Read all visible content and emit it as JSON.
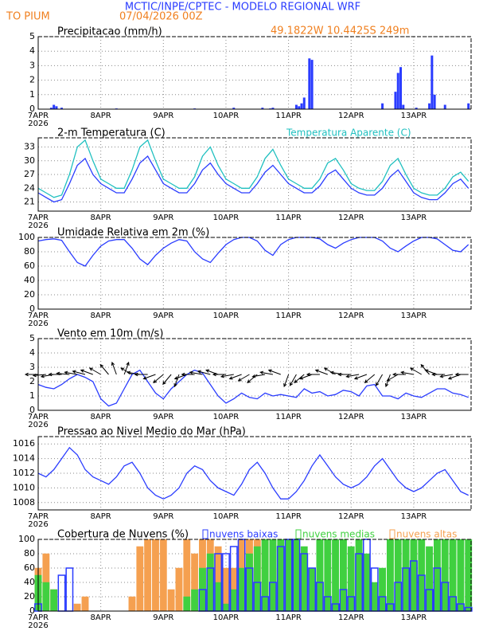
{
  "header": {
    "title": "MCTIC/INPE/CPTEC - MODELO REGIONAL WRF",
    "location": "TO PIUM",
    "date": "07/04/2026 00Z",
    "coords": "49.1822W 10.4425S 249m"
  },
  "chart_data": [
    {
      "type": "bar",
      "title": "Precipitacao (mm/h)",
      "color": "#2a3cff",
      "x": [
        5,
        6,
        7,
        9,
        30,
        60,
        75,
        86,
        89,
        90,
        99,
        100,
        101,
        102,
        104,
        105,
        132,
        137,
        138,
        139,
        140,
        145,
        150,
        151,
        152,
        156,
        165
      ],
      "values": [
        0.1,
        0.3,
        0.2,
        0.1,
        0.05,
        0.05,
        0.1,
        0.1,
        0.05,
        0.1,
        0.3,
        0.2,
        0.4,
        0.8,
        3.5,
        3.4,
        0.4,
        1.2,
        2.5,
        2.9,
        0.3,
        0.1,
        0.4,
        3.7,
        1.0,
        0.3,
        0.4
      ],
      "xlim": [
        0,
        166
      ],
      "xticks": [
        {
          "value": 0,
          "label": "7APR"
        },
        {
          "value": 24,
          "label": "8APR"
        },
        {
          "value": 48,
          "label": "9APR"
        },
        {
          "value": 72,
          "label": "10APR"
        },
        {
          "value": 96,
          "label": "11APR"
        },
        {
          "value": 120,
          "label": "12APR"
        },
        {
          "value": 144,
          "label": "13APR"
        }
      ],
      "x_year": "2026",
      "ylim": [
        0,
        5
      ],
      "yticks": [
        0,
        1,
        2,
        3,
        4,
        5
      ]
    },
    {
      "type": "line",
      "title": "2-m Temperatura (C)",
      "x": [
        0,
        3,
        6,
        9,
        12,
        15,
        18,
        21,
        24,
        27,
        30,
        33,
        36,
        39,
        42,
        45,
        48,
        51,
        54,
        57,
        60,
        63,
        66,
        69,
        72,
        75,
        78,
        81,
        84,
        87,
        90,
        93,
        96,
        99,
        102,
        105,
        108,
        111,
        114,
        117,
        120,
        123,
        126,
        129,
        132,
        135,
        138,
        141,
        144,
        147,
        150,
        153,
        156,
        159,
        162,
        165
      ],
      "series": [
        {
          "color": "#2a3cff",
          "values": [
            23,
            22,
            21,
            21.5,
            25,
            29,
            30.5,
            27,
            25,
            24,
            23,
            23,
            26,
            29.5,
            31,
            28,
            25,
            24,
            23,
            23,
            25,
            28,
            29.5,
            27,
            25,
            24,
            23,
            23,
            25,
            27.5,
            29,
            27,
            25,
            24,
            23,
            23,
            24.5,
            27,
            28,
            26,
            24,
            23,
            22.5,
            22.5,
            24,
            26.5,
            28,
            25.5,
            23,
            22,
            21.5,
            21.5,
            23,
            25,
            26,
            24
          ]
        },
        {
          "name": "Temperatura Aparente (C)",
          "color": "#20c0c0",
          "values": [
            24,
            23,
            22,
            22.5,
            27,
            33,
            34.5,
            30,
            26,
            25,
            24,
            24,
            28,
            33,
            34.5,
            30,
            26,
            25,
            24,
            24,
            26.5,
            31,
            33,
            29,
            26,
            25,
            24,
            24,
            26.5,
            30.5,
            32.5,
            29,
            26,
            25,
            24,
            24,
            26,
            29.5,
            30.5,
            28,
            25,
            24,
            23.5,
            23.5,
            25.5,
            29,
            30.5,
            27,
            24,
            23,
            22.5,
            22.5,
            24,
            26.5,
            27.5,
            25.5
          ]
        }
      ],
      "xlim": [
        0,
        166
      ],
      "xticks": [
        {
          "value": 0,
          "label": "7APR"
        },
        {
          "value": 24,
          "label": "8APR"
        },
        {
          "value": 48,
          "label": "9APR"
        },
        {
          "value": 72,
          "label": "10APR"
        },
        {
          "value": 96,
          "label": "11APR"
        },
        {
          "value": 120,
          "label": "12APR"
        },
        {
          "value": 144,
          "label": "13APR"
        }
      ],
      "x_year": "2026",
      "ylim": [
        19,
        35
      ],
      "yticks": [
        21,
        24,
        27,
        30,
        33
      ]
    },
    {
      "type": "line",
      "title": "Umidade Relativa em 2m (%)",
      "x": [
        0,
        3,
        6,
        9,
        12,
        15,
        18,
        21,
        24,
        27,
        30,
        33,
        36,
        39,
        42,
        45,
        48,
        51,
        54,
        57,
        60,
        63,
        66,
        69,
        72,
        75,
        78,
        81,
        84,
        87,
        90,
        93,
        96,
        99,
        102,
        105,
        108,
        111,
        114,
        117,
        120,
        123,
        126,
        129,
        132,
        135,
        138,
        141,
        144,
        147,
        150,
        153,
        156,
        159,
        162,
        165
      ],
      "series": [
        {
          "color": "#2a3cff",
          "values": [
            95,
            97,
            98,
            96,
            80,
            65,
            60,
            75,
            88,
            95,
            97,
            97,
            85,
            70,
            62,
            75,
            85,
            92,
            97,
            95,
            80,
            70,
            65,
            78,
            90,
            97,
            100,
            100,
            95,
            82,
            75,
            90,
            97,
            100,
            100,
            100,
            98,
            90,
            85,
            92,
            97,
            100,
            100,
            100,
            95,
            85,
            80,
            88,
            95,
            100,
            100,
            98,
            90,
            82,
            80,
            90
          ]
        }
      ],
      "xlim": [
        0,
        166
      ],
      "xticks": [
        {
          "value": 0,
          "label": "7APR"
        },
        {
          "value": 24,
          "label": "8APR"
        },
        {
          "value": 48,
          "label": "9APR"
        },
        {
          "value": 72,
          "label": "10APR"
        },
        {
          "value": 96,
          "label": "11APR"
        },
        {
          "value": 120,
          "label": "12APR"
        },
        {
          "value": 144,
          "label": "13APR"
        }
      ],
      "x_year": "2026",
      "ylim": [
        0,
        100
      ],
      "yticks": [
        0,
        20,
        40,
        60,
        80,
        100
      ]
    },
    {
      "type": "wind",
      "title": "Vento em 10m (m/s)",
      "x": [
        0,
        3,
        6,
        9,
        12,
        15,
        18,
        21,
        24,
        27,
        30,
        33,
        36,
        39,
        42,
        45,
        48,
        51,
        54,
        57,
        60,
        63,
        66,
        69,
        72,
        75,
        78,
        81,
        84,
        87,
        90,
        93,
        96,
        99,
        102,
        105,
        108,
        111,
        114,
        117,
        120,
        123,
        126,
        129,
        132,
        135,
        138,
        141,
        144,
        147,
        150,
        153,
        156,
        159,
        162,
        165
      ],
      "series": [
        {
          "color": "#2a3cff",
          "values": [
            1.8,
            1.6,
            1.5,
            1.8,
            2.2,
            2.5,
            2.3,
            2.0,
            0.8,
            0.3,
            0.5,
            1.5,
            2.5,
            2.8,
            2.0,
            1.2,
            0.8,
            1.5,
            2.0,
            2.5,
            2.8,
            2.6,
            1.8,
            1.0,
            0.5,
            0.8,
            1.2,
            0.9,
            0.8,
            1.2,
            1.0,
            1.1,
            1.0,
            0.9,
            1.5,
            1.2,
            1.3,
            1.0,
            1.1,
            1.4,
            1.3,
            1.0,
            1.7,
            1.8,
            1.0,
            1.0,
            0.8,
            1.2,
            1.0,
            0.9,
            1.2,
            1.5,
            1.5,
            1.2,
            1.1,
            0.9
          ]
        }
      ],
      "wind_direction": [
        270,
        265,
        260,
        270,
        275,
        280,
        285,
        290,
        300,
        320,
        340,
        20,
        300,
        280,
        270,
        250,
        230,
        220,
        200,
        250,
        270,
        280,
        285,
        290,
        270,
        260,
        250,
        240,
        230,
        260,
        280,
        290,
        200,
        210,
        230,
        250,
        270,
        290,
        300,
        280,
        270,
        260,
        250,
        230,
        210,
        200,
        240,
        270,
        280,
        300,
        320,
        290,
        270,
        260,
        250,
        270
      ],
      "xlim": [
        0,
        166
      ],
      "xticks": [
        {
          "value": 0,
          "label": "7APR"
        },
        {
          "value": 24,
          "label": "8APR"
        },
        {
          "value": 48,
          "label": "9APR"
        },
        {
          "value": 72,
          "label": "10APR"
        },
        {
          "value": 96,
          "label": "11APR"
        },
        {
          "value": 120,
          "label": "12APR"
        },
        {
          "value": 144,
          "label": "13APR"
        }
      ],
      "x_year": "2026",
      "ylim": [
        0,
        5
      ],
      "yticks": [
        0,
        1,
        2,
        3,
        4,
        5
      ]
    },
    {
      "type": "line",
      "title": "Pressao ao Nivel Medio do Mar (hPa)",
      "x": [
        0,
        3,
        6,
        9,
        12,
        15,
        18,
        21,
        24,
        27,
        30,
        33,
        36,
        39,
        42,
        45,
        48,
        51,
        54,
        57,
        60,
        63,
        66,
        69,
        72,
        75,
        78,
        81,
        84,
        87,
        90,
        93,
        96,
        99,
        102,
        105,
        108,
        111,
        114,
        117,
        120,
        123,
        126,
        129,
        132,
        135,
        138,
        141,
        144,
        147,
        150,
        153,
        156,
        159,
        162,
        165
      ],
      "series": [
        {
          "color": "#2a3cff",
          "values": [
            1012,
            1011.5,
            1012.5,
            1014,
            1015.5,
            1014.5,
            1012.5,
            1011.5,
            1011,
            1010.5,
            1011.5,
            1013,
            1013.5,
            1012,
            1010,
            1009,
            1008.5,
            1009,
            1010,
            1012,
            1013,
            1012.5,
            1011,
            1010,
            1009.5,
            1009,
            1010.5,
            1012.5,
            1013.5,
            1012,
            1010,
            1008.5,
            1008.5,
            1009.5,
            1011,
            1013,
            1014.5,
            1013,
            1011.5,
            1010.5,
            1010,
            1010.5,
            1011.5,
            1013,
            1014,
            1012.5,
            1011,
            1010,
            1009.5,
            1010,
            1011,
            1012,
            1012.5,
            1011,
            1009.5,
            1009
          ]
        }
      ],
      "xlim": [
        0,
        166
      ],
      "xticks": [
        {
          "value": 0,
          "label": "7APR"
        },
        {
          "value": 24,
          "label": "8APR"
        },
        {
          "value": 48,
          "label": "9APR"
        },
        {
          "value": 72,
          "label": "10APR"
        },
        {
          "value": 96,
          "label": "11APR"
        },
        {
          "value": 120,
          "label": "12APR"
        },
        {
          "value": 144,
          "label": "13APR"
        }
      ],
      "x_year": "2026",
      "ylim": [
        1007,
        1017
      ],
      "yticks": [
        1008,
        1010,
        1012,
        1014,
        1016
      ]
    },
    {
      "type": "bar",
      "title": "Cobertura de Nuvens (%)",
      "x": [
        0,
        3,
        6,
        9,
        12,
        15,
        18,
        21,
        24,
        27,
        30,
        33,
        36,
        39,
        42,
        45,
        48,
        51,
        54,
        57,
        60,
        63,
        66,
        69,
        72,
        75,
        78,
        81,
        84,
        87,
        90,
        93,
        96,
        99,
        102,
        105,
        108,
        111,
        114,
        117,
        120,
        123,
        126,
        129,
        132,
        135,
        138,
        141,
        144,
        147,
        150,
        153,
        156,
        159,
        162,
        165
      ],
      "series": [
        {
          "name": "nuvens altas",
          "color": "#f5a050",
          "values": [
            60,
            80,
            30,
            0,
            0,
            10,
            20,
            0,
            0,
            0,
            0,
            0,
            20,
            90,
            100,
            100,
            100,
            30,
            60,
            100,
            80,
            100,
            100,
            90,
            60,
            60,
            100,
            100,
            100,
            100,
            60,
            30,
            20,
            10,
            0,
            0,
            0,
            0,
            0,
            0,
            0,
            0,
            0,
            0,
            0,
            0,
            0,
            0,
            0,
            0,
            0,
            0,
            0,
            0,
            0,
            0
          ]
        },
        {
          "name": "nuvens medias",
          "color": "#40d040",
          "values": [
            50,
            40,
            30,
            0,
            0,
            0,
            0,
            0,
            0,
            0,
            0,
            0,
            0,
            0,
            0,
            0,
            0,
            0,
            0,
            20,
            30,
            60,
            80,
            40,
            10,
            30,
            60,
            80,
            90,
            100,
            100,
            100,
            100,
            100,
            90,
            60,
            100,
            100,
            100,
            100,
            90,
            100,
            80,
            40,
            60,
            100,
            100,
            100,
            100,
            100,
            90,
            100,
            100,
            100,
            100,
            100
          ]
        },
        {
          "name": "nuvens baixas",
          "color": "#2a3cff",
          "values": [
            10,
            0,
            0,
            50,
            60,
            0,
            0,
            0,
            0,
            0,
            0,
            0,
            0,
            0,
            0,
            0,
            0,
            0,
            0,
            0,
            0,
            30,
            60,
            80,
            80,
            90,
            100,
            60,
            40,
            20,
            40,
            90,
            100,
            100,
            80,
            60,
            40,
            20,
            10,
            30,
            20,
            80,
            100,
            60,
            20,
            10,
            40,
            60,
            70,
            50,
            30,
            60,
            40,
            20,
            10,
            5
          ]
        }
      ],
      "xlim": [
        0,
        166
      ],
      "xticks": [
        {
          "value": 0,
          "label": "7APR"
        },
        {
          "value": 24,
          "label": "8APR"
        },
        {
          "value": 48,
          "label": "9APR"
        },
        {
          "value": 72,
          "label": "10APR"
        },
        {
          "value": 96,
          "label": "11APR"
        },
        {
          "value": 120,
          "label": "12APR"
        },
        {
          "value": 144,
          "label": "13APR"
        }
      ],
      "x_year": "2026",
      "ylim": [
        0,
        100
      ],
      "yticks": [
        0,
        20,
        40,
        60,
        80,
        100
      ]
    }
  ]
}
